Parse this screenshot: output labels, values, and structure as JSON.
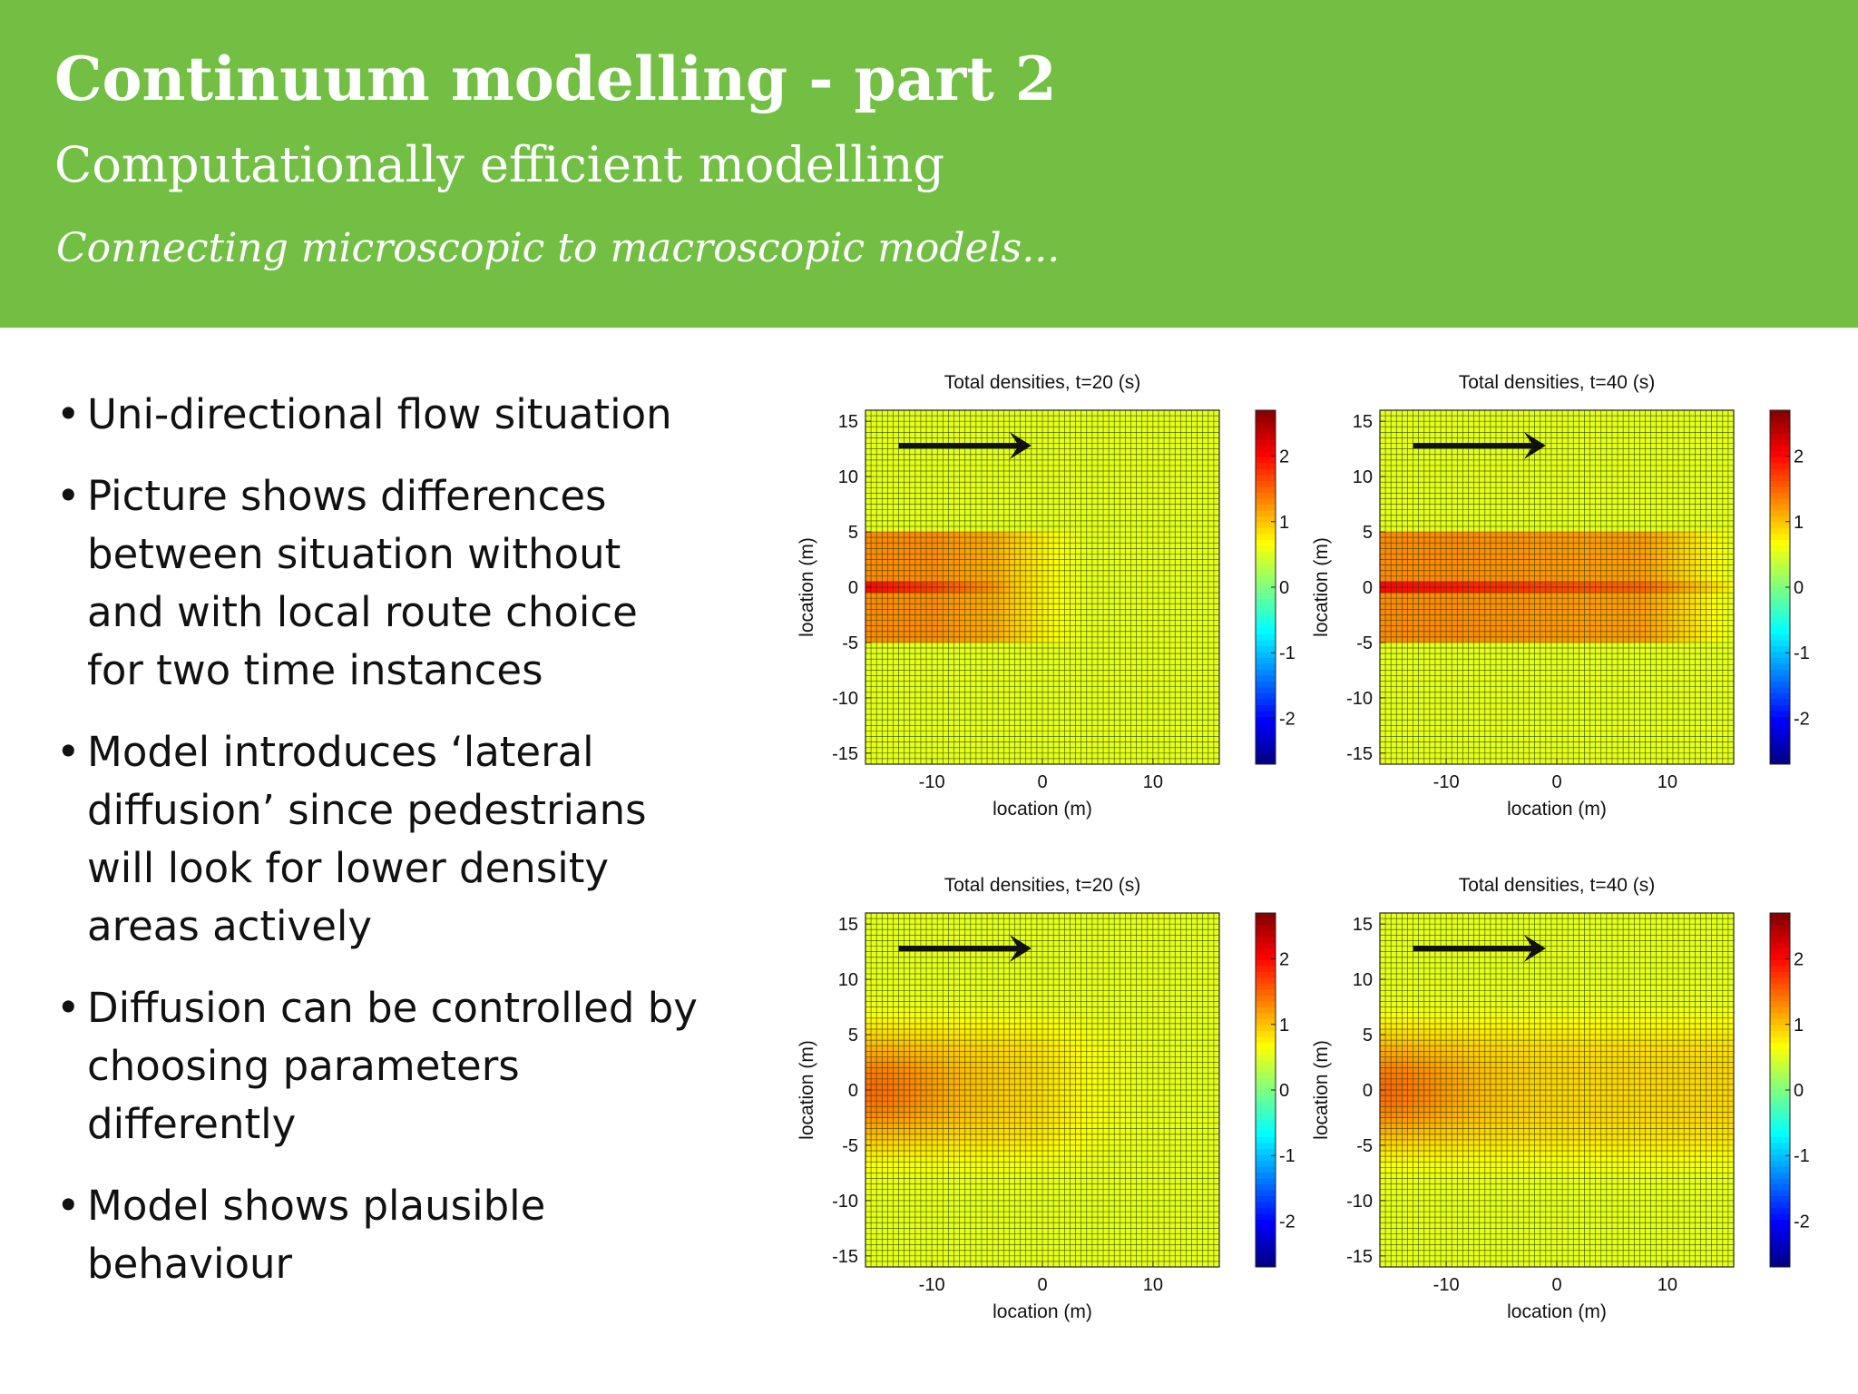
{
  "header": {
    "title": "Continuum modelling - part 2",
    "subtitle": "Computationally efficient modelling",
    "tagline": "Connecting microscopic to macroscopic models..."
  },
  "bullets": [
    "Uni-directional flow situation",
    "Picture shows differences\nbetween situation without\nand with local route choice\nfor two time instances",
    "Model introduces ‘lateral\ndiffusion’ since pedestrians\nwill look for lower density\nareas actively",
    "Diffusion can be controlled by\nchoosing parameters\ndifferently",
    "Model shows plausible\nbehaviour"
  ],
  "colors": {
    "header_bg": "#72bf44",
    "field_bg": "#7ed957",
    "band": "#f0a020",
    "band_core": "#e02810"
  },
  "chart_data": [
    {
      "type": "heatmap",
      "title": "Total densities, t=20 (s)",
      "xlabel": "location (m)",
      "ylabel": "location (m)",
      "xlim": [
        -16,
        16
      ],
      "ylim": [
        -16,
        16
      ],
      "xticks": [
        -10,
        0,
        10
      ],
      "yticks": [
        15,
        10,
        5,
        0,
        -5,
        -10,
        -15
      ],
      "colorbar_ticks": [
        2,
        1,
        0,
        -1,
        -2
      ],
      "clim": [
        -2.7,
        2.7
      ],
      "band": {
        "y_range": [
          -5,
          5
        ],
        "x_extent_to": 4,
        "core_y": 0,
        "core_value": 2.0,
        "band_value": 1.3
      },
      "arrow": {
        "x_from": -13,
        "x_to": -1,
        "y": 12.8
      }
    },
    {
      "type": "heatmap",
      "title": "Total densities, t=40 (s)",
      "xlabel": "location (m)",
      "ylabel": "location (m)",
      "xlim": [
        -16,
        16
      ],
      "ylim": [
        -16,
        16
      ],
      "xticks": [
        -10,
        0,
        10
      ],
      "yticks": [
        15,
        10,
        5,
        0,
        -5,
        -10,
        -15
      ],
      "colorbar_ticks": [
        2,
        1,
        0,
        -1,
        -2
      ],
      "clim": [
        -2.7,
        2.7
      ],
      "band": {
        "y_range": [
          -5,
          5
        ],
        "x_extent_to": 16,
        "core_y": 0,
        "core_value": 2.0,
        "band_value": 1.3
      },
      "arrow": {
        "x_from": -13,
        "x_to": -1,
        "y": 12.8
      }
    },
    {
      "type": "heatmap",
      "title": "Total densities, t=20 (s)",
      "xlabel": "location (m)",
      "ylabel": "location (m)",
      "xlim": [
        -16,
        16
      ],
      "ylim": [
        -16,
        16
      ],
      "xticks": [
        -10,
        0,
        10
      ],
      "yticks": [
        15,
        10,
        5,
        0,
        -5,
        -10,
        -15
      ],
      "colorbar_ticks": [
        2,
        1,
        0,
        -1,
        -2
      ],
      "clim": [
        -2.7,
        2.7
      ],
      "band": {
        "y_range": [
          -6.5,
          6.5
        ],
        "x_extent_to": 8,
        "core_y": 0,
        "core_value": 1.6,
        "band_value": 0.9,
        "diffuse": true
      },
      "arrow": {
        "x_from": -13,
        "x_to": -1,
        "y": 12.8
      }
    },
    {
      "type": "heatmap",
      "title": "Total densities, t=40 (s)",
      "xlabel": "location (m)",
      "ylabel": "location (m)",
      "xlim": [
        -16,
        16
      ],
      "ylim": [
        -16,
        16
      ],
      "xticks": [
        -10,
        0,
        10
      ],
      "yticks": [
        15,
        10,
        5,
        0,
        -5,
        -10,
        -15
      ],
      "colorbar_ticks": [
        2,
        1,
        0,
        -1,
        -2
      ],
      "clim": [
        -2.7,
        2.7
      ],
      "band": {
        "y_range": [
          -6.5,
          6.5
        ],
        "x_extent_to": 16,
        "core_y": 0,
        "core_value": 1.6,
        "band_value": 0.9,
        "diffuse": true
      },
      "arrow": {
        "x_from": -13,
        "x_to": -1,
        "y": 12.8
      }
    }
  ]
}
